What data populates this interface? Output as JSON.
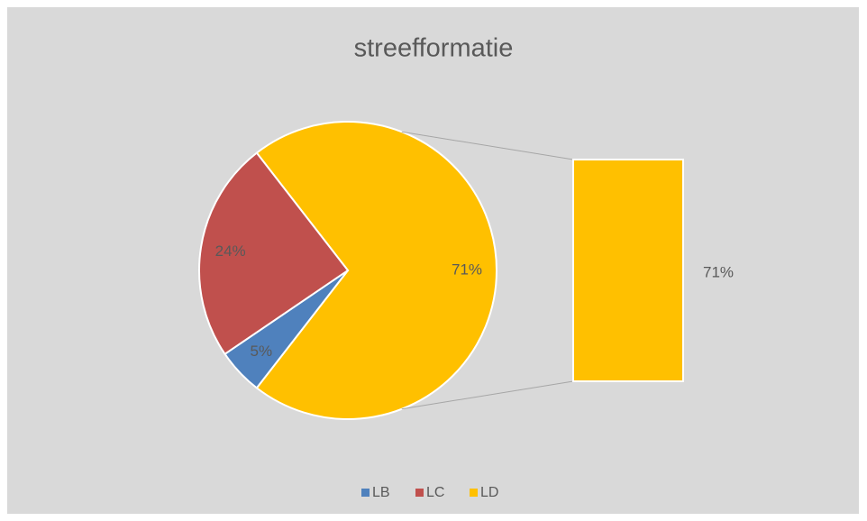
{
  "chart_data": {
    "type": "bar-of-pie",
    "title": "streefformatie",
    "categories": [
      "LB",
      "LC",
      "LD"
    ],
    "values": [
      5,
      24,
      71
    ],
    "value_labels": [
      "5%",
      "24%",
      "71%"
    ],
    "colors": [
      "#4f81bd",
      "#c0504d",
      "#ffc000"
    ]
  }
}
